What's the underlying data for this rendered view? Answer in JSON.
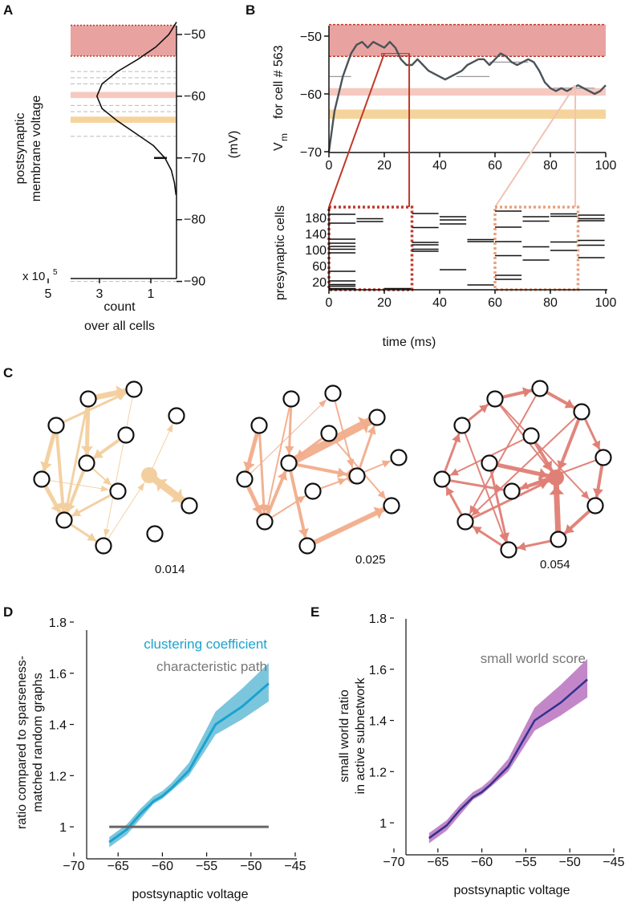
{
  "colors": {
    "band_red": "#e8a3a1",
    "band_red_edge": "#c0392b",
    "band_pink": "#f6c9c0",
    "band_orange": "#f5d49c",
    "trace": "#4a5358",
    "graph_low": "#f3cf9f",
    "graph_mid": "#f2ad8c",
    "graph_high": "#e07f76",
    "clustering": "#1aa3cf",
    "clustering_band": "#7cc6dd",
    "path": "#666666",
    "smallworld": "#34328f",
    "smallworld_band": "#c387c9"
  },
  "panel_labels": {
    "a": "A",
    "b": "B",
    "c": "C",
    "d": "D",
    "e": "E"
  },
  "panel_a": {
    "ylabel_line1": "postsynaptic",
    "ylabel_line2": "membrane voltage",
    "unit": "(mV)",
    "scale_note": "x 10",
    "scale_exp": "5",
    "xlabel_line1": "count",
    "xlabel_line2": "over all cells",
    "x_ticks": [
      "5",
      "3",
      "1"
    ],
    "y_ticks": [
      "−50",
      "−60",
      "−70",
      "−80",
      "−90"
    ]
  },
  "panel_b": {
    "ylabel_top_v": "V",
    "ylabel_top_sub": "m",
    "ylabel_top_rest": "for cell # 563",
    "ylabel_bottom": "presynaptic cells",
    "xlabel": "time (ms)",
    "top_y_ticks": [
      "−50",
      "−60",
      "−70"
    ],
    "top_x_ticks": [
      "0",
      "20",
      "40",
      "60",
      "80",
      "100"
    ],
    "bottom_y_ticks": [
      "180",
      "140",
      "100",
      "60",
      "20"
    ],
    "bottom_x_ticks": [
      "0",
      "20",
      "40",
      "60",
      "80",
      "100"
    ]
  },
  "panel_c": {
    "graph_values": [
      "0.014",
      "0.025",
      "0.054"
    ]
  },
  "panel_d": {
    "ylabel_line1": "ratio compared to sparseness-",
    "ylabel_line2": "matched random graphs",
    "xlabel": "postsynaptic voltage",
    "legend_clustering": "clustering coefficient",
    "legend_path": "characteristic path",
    "y_ticks": [
      "1.8",
      "1.6",
      "1.4",
      "1.2",
      "1"
    ],
    "x_ticks": [
      "−70",
      "−65",
      "−60",
      "−55",
      "−50",
      "−45"
    ]
  },
  "panel_e": {
    "ylabel_line1": "small world ratio",
    "ylabel_line2": "in active subnetwork",
    "xlabel": "postsynaptic voltage",
    "legend": "small world score",
    "y_ticks": [
      "1.8",
      "1.6",
      "1.4",
      "1.2",
      "1"
    ],
    "x_ticks": [
      "−70",
      "−65",
      "−60",
      "−55",
      "−50",
      "−45"
    ]
  },
  "chart_data": [
    {
      "type": "line",
      "panel": "A",
      "title": "",
      "xlabel": "count over all cells (x 10^5)",
      "ylabel": "postsynaptic membrane voltage (mV)",
      "x": [
        -48,
        -50,
        -52,
        -54,
        -56,
        -58,
        -60,
        -62,
        -64,
        -66,
        -68,
        -70,
        -72,
        -74,
        -76
      ],
      "values": [
        0.0,
        0.3,
        0.8,
        1.5,
        2.3,
        2.9,
        3.1,
        2.9,
        2.3,
        1.6,
        0.9,
        0.45,
        0.2,
        0.08,
        0.02
      ],
      "ylim": [
        -91,
        -47
      ],
      "xlim": [
        5,
        0
      ]
    },
    {
      "type": "line",
      "panel": "B",
      "title": "",
      "xlabel": "time (ms)",
      "ylabel": "Vm for cell # 563",
      "x": [
        0,
        2,
        5,
        8,
        10,
        12,
        14,
        16,
        18,
        20,
        22,
        24,
        26,
        28,
        30,
        32,
        34,
        36,
        38,
        40,
        42,
        44,
        46,
        48,
        50,
        52,
        54,
        56,
        58,
        60,
        62,
        64,
        66,
        68,
        70,
        72,
        74,
        76,
        78,
        80,
        82,
        84,
        86,
        88,
        90,
        92,
        94,
        96,
        98,
        100
      ],
      "values": [
        -70,
        -63,
        -57,
        -53,
        -51.5,
        -51,
        -52,
        -51,
        -51.5,
        -52,
        -51,
        -52,
        -54,
        -55,
        -55,
        -54,
        -55,
        -56,
        -56.5,
        -57,
        -57.5,
        -57,
        -56.5,
        -56,
        -55,
        -54.5,
        -54,
        -54,
        -55,
        -54,
        -53,
        -53.5,
        -54.5,
        -55,
        -54.5,
        -54,
        -54.5,
        -56,
        -58,
        -59,
        -59.5,
        -59,
        -59.5,
        -59,
        -58.5,
        -59,
        -59.5,
        -60,
        -59.5,
        -58.5
      ],
      "ylim": [
        -70,
        -47
      ],
      "xlim": [
        0,
        100
      ]
    },
    {
      "type": "scatter",
      "panel": "B raster",
      "title": "",
      "xlabel": "time (ms)",
      "ylabel": "presynaptic cells",
      "x": [
        0,
        0,
        0,
        0,
        0,
        0,
        0,
        0,
        0,
        0,
        0,
        0,
        10,
        10,
        20,
        30,
        30,
        30,
        30,
        30,
        30,
        40,
        40,
        40,
        40,
        50,
        50,
        50,
        60,
        60,
        60,
        60,
        60,
        60,
        70,
        70,
        70,
        70,
        80,
        80,
        80,
        80,
        90,
        90,
        90,
        90,
        90,
        90
      ],
      "values": [
        188,
        166,
        126,
        116,
        108,
        101,
        92,
        46,
        22,
        13,
        9,
        3,
        177,
        170,
        3,
        190,
        155,
        118,
        112,
        101,
        96,
        182,
        174,
        164,
        50,
        125,
        120,
        12,
        196,
        156,
        120,
        85,
        36,
        26,
        182,
        171,
        107,
        74,
        183,
        119,
        98,
        189,
        186,
        177,
        172,
        123,
        111,
        80
      ],
      "ylim": [
        0,
        200
      ],
      "xlim": [
        0,
        100
      ]
    },
    {
      "type": "line",
      "panel": "D",
      "title": "",
      "xlabel": "postsynaptic voltage",
      "ylabel": "ratio compared to sparseness-matched random graphs",
      "x": [
        -66,
        -64,
        -62.5,
        -61,
        -60,
        -59,
        -57,
        -55.5,
        -54,
        -51,
        -48
      ],
      "series": [
        {
          "name": "clustering coefficient",
          "values": [
            0.94,
            0.99,
            1.05,
            1.1,
            1.12,
            1.15,
            1.22,
            1.31,
            1.4,
            1.47,
            1.56
          ],
          "lower": [
            0.92,
            0.97,
            1.03,
            1.09,
            1.11,
            1.14,
            1.2,
            1.28,
            1.36,
            1.42,
            1.49
          ],
          "upper": [
            0.96,
            1.01,
            1.07,
            1.12,
            1.14,
            1.17,
            1.25,
            1.35,
            1.45,
            1.54,
            1.64
          ]
        },
        {
          "name": "characteristic path",
          "values": [
            1.0,
            1.0,
            1.0,
            1.0,
            1.0,
            1.0,
            1.0,
            1.0,
            1.0,
            1.0,
            1.0
          ]
        }
      ],
      "ylim": [
        0.9,
        1.8
      ],
      "xlim": [
        -70,
        -45
      ]
    },
    {
      "type": "line",
      "panel": "E",
      "title": "",
      "xlabel": "postsynaptic voltage",
      "ylabel": "small world ratio in active subnetwork",
      "x": [
        -66,
        -64,
        -62.5,
        -61,
        -60,
        -59,
        -57,
        -55.5,
        -54,
        -51,
        -48
      ],
      "series": [
        {
          "name": "small world score",
          "values": [
            0.94,
            0.99,
            1.05,
            1.1,
            1.12,
            1.15,
            1.22,
            1.31,
            1.4,
            1.47,
            1.56
          ],
          "lower": [
            0.92,
            0.97,
            1.03,
            1.09,
            1.11,
            1.14,
            1.2,
            1.28,
            1.36,
            1.42,
            1.49
          ],
          "upper": [
            0.96,
            1.01,
            1.07,
            1.12,
            1.14,
            1.17,
            1.25,
            1.35,
            1.45,
            1.54,
            1.64
          ]
        }
      ],
      "ylim": [
        0.9,
        1.8
      ],
      "xlim": [
        -70,
        -45
      ]
    }
  ]
}
